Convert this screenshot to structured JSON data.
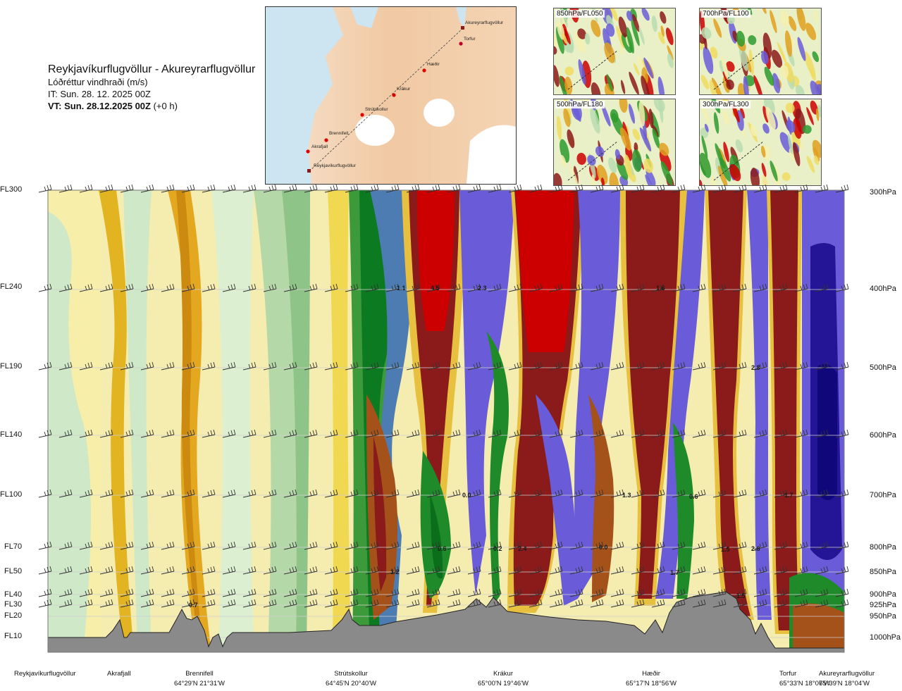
{
  "header": {
    "title": "Reykjavíkurflugvöllur - Akureyrarflugvöllur",
    "subtitle": "Lóðréttur vindhraði (m/s)",
    "issue_time": "IT: Sun. 28. 12. 2025 00Z",
    "valid_time_bold": "VT: Sun. 28.12.2025 00Z",
    "valid_time_offset": "(+0 h)"
  },
  "route_map": {
    "places": [
      "Akureyrarflugvöllur",
      "Torfur",
      "Hæðir",
      "Krákur",
      "Strútskollur",
      "Brennifell",
      "Akrafjall",
      "Reykjavíkurflugvöllur"
    ]
  },
  "mini_maps": [
    {
      "label": "850hPa/FL050"
    },
    {
      "label": "700hPa/FL100"
    },
    {
      "label": "500hPa/FL180"
    },
    {
      "label": "300hPa/FL300"
    }
  ],
  "left_axis": [
    "FL300",
    "FL240",
    "FL190",
    "FL140",
    "FL100",
    "FL70",
    "FL50",
    "FL40",
    "FL30",
    "FL20",
    "FL10"
  ],
  "right_axis": [
    "300hPa",
    "400hPa",
    "500hPa",
    "600hPa",
    "700hPa",
    "800hPa",
    "850hPa",
    "900hPa",
    "925hPa",
    "950hPa",
    "1000hPa"
  ],
  "locations": [
    {
      "name": "Reykjavíkurflugvöllur",
      "coord": ""
    },
    {
      "name": "Akrafjall",
      "coord": ""
    },
    {
      "name": "Brennifell",
      "coord": "64°29'N 21°31'W"
    },
    {
      "name": "Strútskollur",
      "coord": "64°45'N 20°40'W"
    },
    {
      "name": "Krákur",
      "coord": "65°00'N 19°46'W"
    },
    {
      "name": "Hæðir",
      "coord": "65°17'N 18°56'W"
    },
    {
      "name": "Torfur",
      "coord": "65°33'N 18°07'W"
    },
    {
      "name": "Akureyrarflugvöllur",
      "coord": "65°39'N 18°04'W"
    }
  ],
  "chart_data": {
    "type": "heatmap",
    "title": "Reykjavíkurflugvöllur - Akureyrarflugvöllur",
    "subtitle": "Lóðréttur vindhraði (m/s)",
    "x_categories": [
      "Reykjavíkurflugvöllur",
      "Akrafjall",
      "Brennifell",
      "Strútskollur",
      "Krákur",
      "Hæðir",
      "Torfur",
      "Akureyrarflugvöllur"
    ],
    "y_pressure_levels_hPa": [
      300,
      400,
      500,
      600,
      700,
      800,
      850,
      900,
      925,
      950,
      1000
    ],
    "y_flight_levels": [
      "FL300",
      "FL240",
      "FL190",
      "FL140",
      "FL100",
      "FL70",
      "FL50",
      "FL40",
      "FL30",
      "FL20",
      "FL10"
    ],
    "value_labels": [
      "1.1",
      "4.5",
      "2.3",
      "1.6",
      "2.8",
      "0.0",
      "1.3",
      "0.6",
      "0.6",
      "0.2",
      "2.4",
      "0.0",
      "1.5",
      "2.8",
      "1.7",
      "1.2",
      "0.7",
      "1.7",
      "1.5"
    ],
    "colors": {
      "strong_positive": "#8b1a1a",
      "positive": "#cc0000",
      "moderate_positive": "#a0521e",
      "weak_positive_orange": "#e0a020",
      "weak_positive_yellow": "#f0dc60",
      "near_zero": "#f5f0b0",
      "weak_negative": "#b8dcb0",
      "moderate_negative": "#2e9a2e",
      "strong_negative": "#0a7a1a",
      "steel_blue": "#4a7ab0",
      "violet_blue": "#6a5cd8",
      "deep_negative": "#241496",
      "terrain": "#8a8a8a"
    }
  }
}
